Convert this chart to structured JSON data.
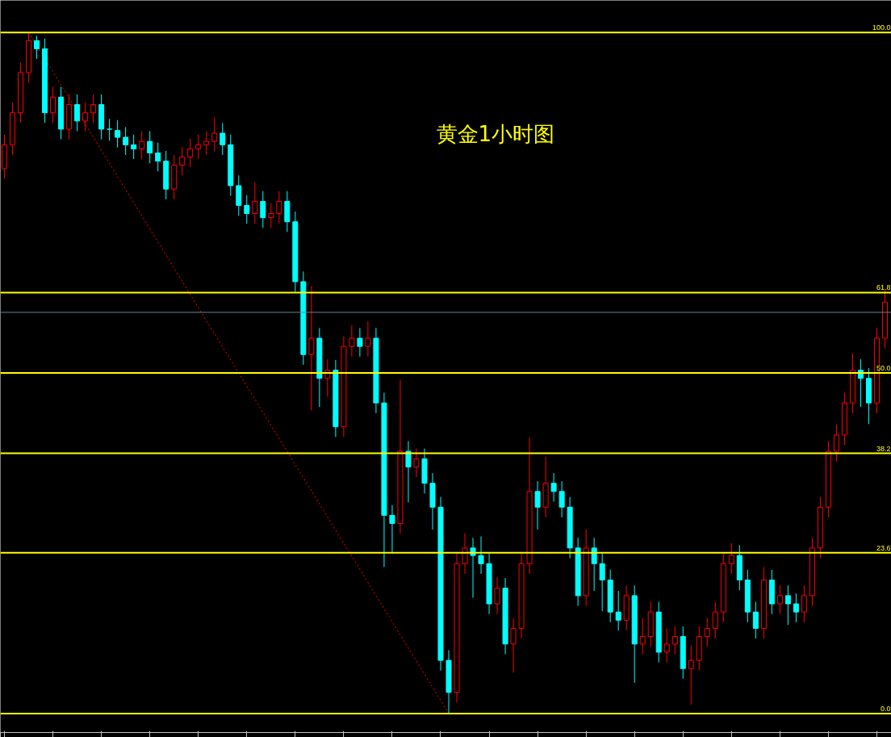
{
  "chart_data": {
    "type": "candlestick",
    "title": "黄金1小时图",
    "categories": [
      null,
      null,
      null,
      null,
      null,
      null,
      null,
      null,
      null,
      null,
      null,
      null,
      null,
      null,
      null,
      null,
      null,
      null,
      null,
      null,
      null,
      null,
      null,
      null,
      null,
      null,
      null,
      null,
      null,
      null,
      null,
      null,
      null,
      null,
      null,
      null,
      null,
      null,
      null,
      null,
      null,
      null,
      null,
      null,
      null,
      null,
      null,
      null,
      null,
      null,
      null,
      null,
      null,
      null,
      null,
      null,
      null,
      null,
      null,
      null,
      null,
      null,
      null,
      null,
      null,
      null,
      null,
      null,
      null,
      null,
      null,
      null,
      null,
      null,
      null,
      null,
      null,
      null,
      null,
      null,
      null,
      null,
      null,
      null,
      null,
      null,
      null,
      null,
      null,
      null,
      null,
      null,
      null,
      null,
      null,
      null,
      null,
      null,
      null,
      null,
      null,
      null,
      null,
      null,
      null,
      null,
      null,
      null,
      null,
      null
    ],
    "ohlc": [
      [
        80.0,
        85.0,
        78.5,
        83.5
      ],
      [
        83.5,
        89.7,
        82.0,
        88.2
      ],
      [
        88.2,
        95.6,
        86.7,
        94.1
      ],
      [
        94.1,
        100.0,
        92.6,
        98.8
      ],
      [
        98.8,
        99.5,
        96.1,
        97.6
      ],
      [
        97.6,
        99.1,
        86.7,
        88.2
      ],
      [
        88.2,
        92.0,
        86.7,
        90.5
      ],
      [
        90.5,
        92.0,
        84.3,
        85.8
      ],
      [
        85.8,
        90.9,
        84.3,
        89.4
      ],
      [
        89.4,
        90.9,
        85.5,
        87.0
      ],
      [
        87.0,
        89.7,
        85.5,
        88.2
      ],
      [
        88.2,
        90.9,
        86.7,
        89.4
      ],
      [
        89.4,
        90.9,
        84.3,
        85.8
      ],
      [
        85.8,
        87.3,
        84.1,
        85.6
      ],
      [
        85.6,
        87.1,
        83.1,
        84.6
      ],
      [
        84.6,
        86.1,
        82.0,
        83.5
      ],
      [
        83.5,
        85.0,
        81.4,
        82.9
      ],
      [
        82.9,
        85.5,
        81.4,
        84.0
      ],
      [
        84.0,
        85.5,
        80.8,
        82.3
      ],
      [
        82.3,
        83.8,
        79.6,
        81.1
      ],
      [
        81.1,
        82.6,
        75.5,
        77.0
      ],
      [
        77.0,
        82.0,
        75.5,
        80.5
      ],
      [
        80.5,
        83.2,
        79.0,
        81.7
      ],
      [
        81.7,
        84.4,
        80.2,
        82.9
      ],
      [
        82.9,
        85.0,
        81.4,
        83.5
      ],
      [
        83.5,
        85.5,
        82.0,
        84.0
      ],
      [
        84.0,
        87.5,
        82.5,
        85.2
      ],
      [
        85.2,
        86.7,
        82.0,
        83.5
      ],
      [
        83.5,
        85.0,
        76.0,
        77.5
      ],
      [
        77.5,
        79.0,
        73.1,
        74.6
      ],
      [
        74.6,
        76.1,
        71.9,
        73.4
      ],
      [
        73.4,
        78.0,
        71.9,
        75.2
      ],
      [
        75.2,
        76.7,
        71.3,
        72.8
      ],
      [
        72.8,
        74.9,
        71.3,
        73.4
      ],
      [
        73.4,
        76.7,
        71.9,
        75.2
      ],
      [
        75.2,
        76.7,
        70.7,
        72.2
      ],
      [
        72.2,
        73.7,
        61.9,
        63.4
      ],
      [
        63.4,
        64.9,
        51.2,
        52.7
      ],
      [
        52.7,
        62.8,
        44.5,
        55.1
      ],
      [
        55.1,
        56.6,
        45.0,
        49.2
      ],
      [
        49.2,
        52.0,
        46.5,
        50.4
      ],
      [
        50.4,
        51.9,
        40.6,
        42.1
      ],
      [
        42.1,
        55.4,
        40.6,
        53.9
      ],
      [
        53.9,
        57.0,
        52.4,
        55.1
      ],
      [
        55.1,
        56.6,
        52.4,
        53.9
      ],
      [
        53.9,
        57.6,
        52.4,
        55.1
      ],
      [
        55.1,
        56.6,
        44.1,
        45.6
      ],
      [
        45.6,
        47.1,
        21.5,
        29.1
      ],
      [
        29.1,
        30.6,
        23.5,
        27.9
      ],
      [
        27.9,
        49.0,
        26.4,
        38.5
      ],
      [
        38.5,
        40.0,
        31.0,
        36.2
      ],
      [
        36.2,
        38.9,
        34.7,
        37.4
      ],
      [
        37.4,
        38.9,
        32.3,
        33.8
      ],
      [
        33.8,
        35.3,
        27.0,
        30.3
      ],
      [
        30.3,
        31.8,
        6.3,
        7.8
      ],
      [
        7.8,
        9.3,
        0.0,
        3.1
      ],
      [
        3.1,
        23.5,
        1.6,
        22.0
      ],
      [
        22.0,
        26.5,
        20.5,
        24.3
      ],
      [
        24.3,
        25.8,
        17.0,
        23.2
      ],
      [
        23.2,
        26.0,
        20.5,
        22.0
      ],
      [
        22.0,
        23.5,
        14.6,
        16.1
      ],
      [
        16.1,
        20.0,
        14.6,
        18.4
      ],
      [
        18.4,
        19.9,
        8.7,
        10.2
      ],
      [
        10.2,
        14.0,
        6.0,
        12.5
      ],
      [
        12.5,
        23.5,
        11.0,
        22.0
      ],
      [
        22.0,
        40.5,
        20.5,
        32.6
      ],
      [
        32.6,
        34.1,
        27.0,
        30.3
      ],
      [
        30.3,
        37.7,
        28.8,
        33.8
      ],
      [
        33.8,
        35.3,
        31.1,
        32.6
      ],
      [
        32.6,
        34.1,
        28.8,
        30.3
      ],
      [
        30.3,
        31.8,
        22.8,
        24.3
      ],
      [
        24.3,
        25.8,
        15.8,
        17.3
      ],
      [
        17.3,
        27.0,
        15.8,
        24.3
      ],
      [
        24.3,
        25.8,
        18.0,
        22.0
      ],
      [
        22.0,
        23.5,
        15.0,
        19.6
      ],
      [
        19.6,
        21.1,
        13.4,
        14.9
      ],
      [
        14.9,
        18.0,
        12.2,
        13.7
      ],
      [
        13.7,
        18.8,
        12.2,
        17.3
      ],
      [
        17.3,
        18.8,
        4.5,
        10.2
      ],
      [
        10.2,
        14.0,
        8.7,
        11.3
      ],
      [
        11.3,
        16.4,
        9.8,
        14.9
      ],
      [
        14.9,
        16.4,
        7.5,
        9.0
      ],
      [
        9.0,
        12.5,
        7.5,
        10.2
      ],
      [
        10.2,
        12.8,
        8.7,
        11.3
      ],
      [
        11.3,
        12.8,
        5.1,
        6.6
      ],
      [
        6.6,
        10.0,
        1.3,
        7.8
      ],
      [
        7.8,
        12.8,
        6.3,
        11.3
      ],
      [
        11.3,
        14.0,
        9.8,
        12.5
      ],
      [
        12.5,
        16.4,
        11.0,
        14.9
      ],
      [
        14.9,
        23.5,
        13.4,
        22.0
      ],
      [
        22.0,
        25.0,
        20.5,
        23.2
      ],
      [
        23.2,
        24.7,
        18.1,
        19.6
      ],
      [
        19.6,
        21.1,
        13.4,
        14.9
      ],
      [
        14.9,
        16.4,
        11.0,
        12.5
      ],
      [
        12.5,
        21.5,
        11.0,
        19.6
      ],
      [
        19.6,
        21.1,
        14.6,
        16.1
      ],
      [
        16.1,
        18.8,
        14.6,
        17.3
      ],
      [
        17.3,
        18.8,
        13.0,
        16.1
      ],
      [
        16.1,
        17.6,
        13.4,
        14.9
      ],
      [
        14.9,
        18.8,
        13.4,
        17.3
      ],
      [
        17.3,
        25.8,
        15.8,
        24.3
      ],
      [
        24.3,
        31.8,
        22.8,
        30.3
      ],
      [
        30.3,
        40.0,
        28.8,
        38.5
      ],
      [
        38.5,
        42.4,
        37.0,
        40.9
      ],
      [
        40.9,
        47.1,
        39.4,
        45.6
      ],
      [
        45.6,
        52.9,
        44.1,
        50.4
      ],
      [
        50.4,
        52.0,
        45.0,
        49.2
      ],
      [
        49.2,
        50.7,
        42.5,
        45.6
      ],
      [
        45.6,
        56.6,
        44.1,
        55.1
      ],
      [
        55.1,
        62.3,
        53.6,
        60.4
      ]
    ],
    "colors": [
      "#ff0000",
      "#ff0000",
      "#ff0000",
      "#ff0000",
      "#00ffff",
      "#00ffff",
      "#ff0000",
      "#00ffff",
      "#ff0000",
      "#00ffff",
      "#ff0000",
      "#ff0000",
      "#00ffff",
      "#00ffff",
      "#00ffff",
      "#00ffff",
      "#00ffff",
      "#ff0000",
      "#00ffff",
      "#00ffff",
      "#00ffff",
      "#ff0000",
      "#ff0000",
      "#ff0000",
      "#ff0000",
      "#ff0000",
      "#ff0000",
      "#00ffff",
      "#00ffff",
      "#00ffff",
      "#00ffff",
      "#ff0000",
      "#00ffff",
      "#ff0000",
      "#ff0000",
      "#00ffff",
      "#00ffff",
      "#00ffff",
      "#ff0000",
      "#00ffff",
      "#ff0000",
      "#00ffff",
      "#ff0000",
      "#ff0000",
      "#00ffff",
      "#ff0000",
      "#00ffff",
      "#00ffff",
      "#00ffff",
      "#ff0000",
      "#00ffff",
      "#ff0000",
      "#00ffff",
      "#00ffff",
      "#00ffff",
      "#00ffff",
      "#ff0000",
      "#ff0000",
      "#00ffff",
      "#00ffff",
      "#00ffff",
      "#ff0000",
      "#00ffff",
      "#ff0000",
      "#ff0000",
      "#ff0000",
      "#00ffff",
      "#ff0000",
      "#00ffff",
      "#00ffff",
      "#00ffff",
      "#00ffff",
      "#ff0000",
      "#00ffff",
      "#00ffff",
      "#00ffff",
      "#00ffff",
      "#ff0000",
      "#00ffff",
      "#ff0000",
      "#ff0000",
      "#00ffff",
      "#ff0000",
      "#ff0000",
      "#00ffff",
      "#ff0000",
      "#ff0000",
      "#ff0000",
      "#ff0000",
      "#ff0000",
      "#ff0000",
      "#00ffff",
      "#00ffff",
      "#00ffff",
      "#ff0000",
      "#00ffff",
      "#ff0000",
      "#00ffff",
      "#00ffff",
      "#ff0000",
      "#ff0000",
      "#ff0000",
      "#ff0000",
      "#ff0000",
      "#ff0000",
      "#ff0000",
      "#00ffff",
      "#00ffff",
      "#ff0000",
      "#ff0000"
    ],
    "series": [
      {
        "type": "line",
        "color": "#ff0000",
        "line_style": "dotted",
        "values": [
          null,
          null,
          null,
          100.0,
          null,
          null,
          null,
          null,
          null,
          null,
          null,
          null,
          null,
          null,
          null,
          null,
          null,
          null,
          null,
          null,
          null,
          null,
          null,
          null,
          null,
          null,
          null,
          null,
          null,
          null,
          null,
          null,
          null,
          null,
          null,
          null,
          null,
          null,
          null,
          null,
          null,
          null,
          null,
          null,
          null,
          null,
          null,
          null,
          null,
          null,
          null,
          null,
          null,
          null,
          null,
          0.0,
          null,
          null,
          null,
          null,
          null,
          null,
          null,
          null,
          null,
          null,
          null,
          null,
          null,
          null,
          null,
          null,
          null,
          null,
          null,
          null,
          null,
          null,
          null,
          null,
          null,
          null,
          null,
          null,
          null,
          null,
          null,
          null,
          null,
          null,
          null,
          null,
          null,
          null,
          null,
          null,
          null,
          null,
          null,
          null,
          null,
          null,
          null,
          null,
          null,
          null,
          null,
          null,
          null,
          null
        ]
      }
    ],
    "ylim": [
      -2.8,
      104.7
    ],
    "ref_lines": [
      {
        "axis": "y",
        "value": 100.0,
        "label": "100.0",
        "color": "#ffff00"
      },
      {
        "axis": "y",
        "value": 61.8,
        "label": "61.8",
        "color": "#ffff00"
      },
      {
        "axis": "y",
        "value": 50.0,
        "label": "50.0",
        "color": "#ffff00"
      },
      {
        "axis": "y",
        "value": 38.2,
        "label": "38.2",
        "color": "#ffff00"
      },
      {
        "axis": "y",
        "value": 23.6,
        "label": "23.6",
        "color": "#ffff00"
      },
      {
        "axis": "y",
        "value": 0.0,
        "label": "0.0",
        "color": "#ffff00"
      },
      {
        "axis": "y",
        "value": 58.9,
        "label": null,
        "color": "#708090"
      }
    ],
    "tick_labels": false,
    "grid": false
  }
}
